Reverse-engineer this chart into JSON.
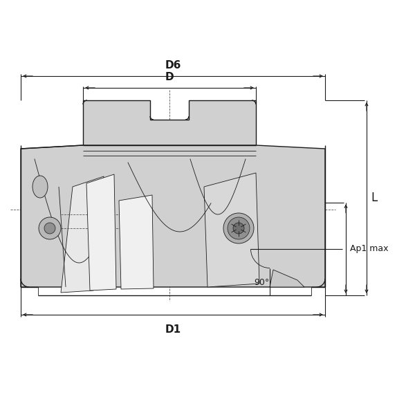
{
  "bg_color": "#ffffff",
  "body_color": "#d0d0d0",
  "line_color": "#1a1a1a",
  "dashed_color": "#555555",
  "labels": {
    "D6": "D6",
    "D": "D",
    "D1": "D1",
    "L": "L",
    "Ap1max": "Ap1 max",
    "angle": "90°"
  },
  "fig_width": 6.0,
  "fig_height": 6.0,
  "dpi": 100
}
